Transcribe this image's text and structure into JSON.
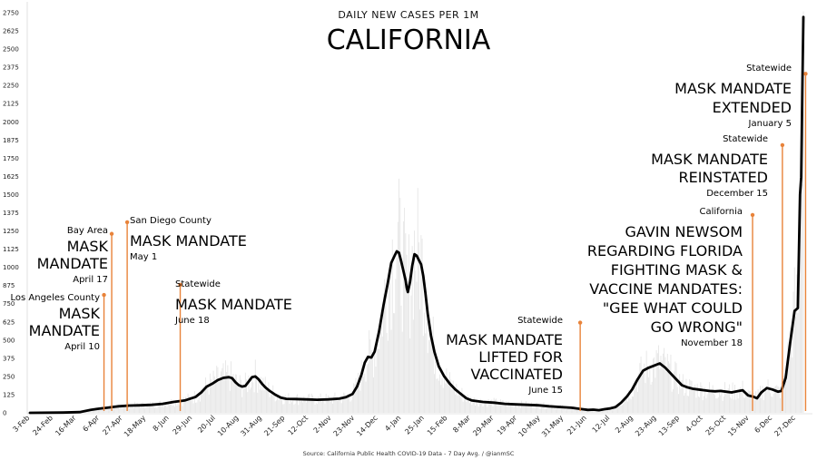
{
  "chart_data": {
    "type": "line",
    "subtitle": "DAILY NEW CASES PER 1M",
    "title": "CALIFORNIA",
    "source": "Source: California Public Health COVID-19 Data - 7 Day Avg. / @ianmSC",
    "ylim": [
      0,
      2750
    ],
    "yticks": [
      0,
      125,
      250,
      375,
      500,
      625,
      750,
      875,
      1000,
      1125,
      1250,
      1375,
      1500,
      1625,
      1750,
      1875,
      2000,
      2125,
      2250,
      2375,
      2500,
      2625,
      2750
    ],
    "ytick_labels": [
      "0",
      "125",
      "250",
      "375",
      "500",
      "625",
      "750",
      "875",
      "1000",
      "1125",
      "1250",
      "1375",
      "1500",
      "1625",
      "1750",
      "1875",
      "2000",
      "2125",
      "2250",
      "2375",
      "2500",
      "2625",
      "2750"
    ],
    "xlim": [
      0,
      700
    ],
    "xticks": [
      {
        "label": "3-Feb",
        "day": 0
      },
      {
        "label": "24-Feb",
        "day": 21
      },
      {
        "label": "16-Mar",
        "day": 42
      },
      {
        "label": "6-Apr",
        "day": 63
      },
      {
        "label": "27-Apr",
        "day": 84
      },
      {
        "label": "18-May",
        "day": 105
      },
      {
        "label": "8-Jun",
        "day": 126
      },
      {
        "label": "29-Jun",
        "day": 147
      },
      {
        "label": "20-Jul",
        "day": 168
      },
      {
        "label": "10-Aug",
        "day": 189
      },
      {
        "label": "31-Aug",
        "day": 210
      },
      {
        "label": "21-Sep",
        "day": 231
      },
      {
        "label": "12-Oct",
        "day": 252
      },
      {
        "label": "2-Nov",
        "day": 273
      },
      {
        "label": "23-Nov",
        "day": 294
      },
      {
        "label": "14-Dec",
        "day": 315
      },
      {
        "label": "4-Jan",
        "day": 336
      },
      {
        "label": "25-Jan",
        "day": 357
      },
      {
        "label": "15-Feb",
        "day": 378
      },
      {
        "label": "8-Mar",
        "day": 399
      },
      {
        "label": "29-Mar",
        "day": 420
      },
      {
        "label": "19-Apr",
        "day": 441
      },
      {
        "label": "10-May",
        "day": 462
      },
      {
        "label": "31-May",
        "day": 483
      },
      {
        "label": "21-Jun",
        "day": 504
      },
      {
        "label": "12-Jul",
        "day": 525
      },
      {
        "label": "2-Aug",
        "day": 546
      },
      {
        "label": "23-Aug",
        "day": 567
      },
      {
        "label": "13-Sep",
        "day": 588
      },
      {
        "label": "4-Oct",
        "day": 609
      },
      {
        "label": "25-Oct",
        "day": 630
      },
      {
        "label": "15-Nov",
        "day": 651
      },
      {
        "label": "6-Dec",
        "day": 672
      },
      {
        "label": "27-Dec",
        "day": 693
      }
    ],
    "series": [
      {
        "line_color": "#000000",
        "bar_color": "#e6e6e6",
        "points": [
          [
            0,
            0
          ],
          [
            30,
            2
          ],
          [
            45,
            5
          ],
          [
            55,
            20
          ],
          [
            62,
            28
          ],
          [
            70,
            35
          ],
          [
            80,
            45
          ],
          [
            90,
            50
          ],
          [
            100,
            52
          ],
          [
            110,
            55
          ],
          [
            120,
            62
          ],
          [
            130,
            75
          ],
          [
            140,
            85
          ],
          [
            150,
            110
          ],
          [
            155,
            140
          ],
          [
            160,
            180
          ],
          [
            165,
            200
          ],
          [
            170,
            225
          ],
          [
            175,
            240
          ],
          [
            180,
            245
          ],
          [
            183,
            238
          ],
          [
            186,
            210
          ],
          [
            189,
            190
          ],
          [
            192,
            180
          ],
          [
            195,
            185
          ],
          [
            198,
            215
          ],
          [
            201,
            245
          ],
          [
            204,
            250
          ],
          [
            207,
            230
          ],
          [
            210,
            200
          ],
          [
            213,
            175
          ],
          [
            217,
            150
          ],
          [
            222,
            125
          ],
          [
            227,
            105
          ],
          [
            232,
            96
          ],
          [
            240,
            95
          ],
          [
            250,
            92
          ],
          [
            260,
            90
          ],
          [
            270,
            92
          ],
          [
            280,
            97
          ],
          [
            286,
            108
          ],
          [
            292,
            130
          ],
          [
            296,
            180
          ],
          [
            300,
            260
          ],
          [
            303,
            345
          ],
          [
            306,
            385
          ],
          [
            309,
            380
          ],
          [
            312,
            420
          ],
          [
            316,
            560
          ],
          [
            320,
            740
          ],
          [
            324,
            900
          ],
          [
            327,
            1030
          ],
          [
            330,
            1080
          ],
          [
            332,
            1110
          ],
          [
            334,
            1100
          ],
          [
            336,
            1040
          ],
          [
            338,
            975
          ],
          [
            340,
            910
          ],
          [
            341,
            860
          ],
          [
            342,
            830
          ],
          [
            344,
            900
          ],
          [
            346,
            1010
          ],
          [
            348,
            1090
          ],
          [
            350,
            1080
          ],
          [
            352,
            1050
          ],
          [
            354,
            1020
          ],
          [
            356,
            940
          ],
          [
            358,
            820
          ],
          [
            360,
            680
          ],
          [
            363,
            530
          ],
          [
            366,
            420
          ],
          [
            370,
            320
          ],
          [
            375,
            250
          ],
          [
            380,
            200
          ],
          [
            385,
            160
          ],
          [
            390,
            130
          ],
          [
            395,
            100
          ],
          [
            400,
            85
          ],
          [
            410,
            75
          ],
          [
            420,
            70
          ],
          [
            430,
            62
          ],
          [
            440,
            58
          ],
          [
            450,
            55
          ],
          [
            460,
            52
          ],
          [
            470,
            45
          ],
          [
            480,
            40
          ],
          [
            490,
            35
          ],
          [
            500,
            25
          ],
          [
            505,
            20
          ],
          [
            510,
            22
          ],
          [
            515,
            18
          ],
          [
            520,
            25
          ],
          [
            525,
            30
          ],
          [
            530,
            40
          ],
          [
            535,
            70
          ],
          [
            540,
            110
          ],
          [
            545,
            160
          ],
          [
            550,
            230
          ],
          [
            555,
            290
          ],
          [
            560,
            310
          ],
          [
            565,
            325
          ],
          [
            570,
            340
          ],
          [
            575,
            310
          ],
          [
            580,
            270
          ],
          [
            585,
            230
          ],
          [
            590,
            190
          ],
          [
            595,
            175
          ],
          [
            600,
            165
          ],
          [
            605,
            160
          ],
          [
            610,
            155
          ],
          [
            615,
            150
          ],
          [
            620,
            148
          ],
          [
            625,
            150
          ],
          [
            630,
            145
          ],
          [
            635,
            140
          ],
          [
            640,
            148
          ],
          [
            645,
            155
          ],
          [
            650,
            120
          ],
          [
            655,
            110
          ],
          [
            658,
            100
          ],
          [
            662,
            140
          ],
          [
            667,
            170
          ],
          [
            672,
            160
          ],
          [
            677,
            145
          ],
          [
            680,
            150
          ],
          [
            684,
            240
          ],
          [
            688,
            480
          ],
          [
            692,
            700
          ],
          [
            695,
            720
          ],
          [
            697,
            1500
          ],
          [
            698,
            1620
          ],
          [
            699,
            2200
          ],
          [
            700,
            2720
          ]
        ]
      }
    ],
    "annotations": [
      {
        "day": 67,
        "value": 810,
        "color": "#e8833a",
        "small_top": "Los Angeles County",
        "big": [
          "MASK",
          "MANDATE"
        ],
        "small_bottom": "April 10"
      },
      {
        "day": 74,
        "value": 1230,
        "color": "#e8833a",
        "small_top": "Bay Area",
        "big": [
          "MASK",
          "MANDATE"
        ],
        "small_bottom": "April 17"
      },
      {
        "day": 88,
        "value": 1310,
        "color": "#e8833a",
        "small_top": "San Diego County",
        "big": [
          "MASK MANDATE"
        ],
        "small_bottom": "May 1"
      },
      {
        "day": 136,
        "value": 880,
        "color": "#e8833a",
        "small_top": "Statewide",
        "big": [
          "MASK MANDATE"
        ],
        "small_bottom": "June 18"
      },
      {
        "day": 498,
        "value": 620,
        "color": "#e8833a",
        "small_top": "Statewide",
        "big": [
          "MASK MANDATE",
          "LIFTED FOR",
          "VACCINATED"
        ],
        "small_bottom": "June 15"
      },
      {
        "day": 654,
        "value": 1360,
        "color": "#e8833a",
        "small_top": "California",
        "big": [
          "GAVIN NEWSOM",
          "REGARDING FLORIDA",
          "FIGHTING MASK &",
          "VACCINE MANDATES:",
          "\"GEE WHAT COULD",
          "GO WRONG\""
        ],
        "small_bottom": "November 18"
      },
      {
        "day": 681,
        "value": 1840,
        "color": "#e8833a",
        "small_top": "Statewide",
        "big": [
          "MASK MANDATE",
          "REINSTATED"
        ],
        "small_bottom": "December 15"
      },
      {
        "day": 702,
        "value": 2330,
        "color": "#e8833a",
        "small_top": "Statewide",
        "big": [
          "MASK MANDATE",
          "EXTENDED"
        ],
        "small_bottom": "January 5"
      }
    ]
  }
}
